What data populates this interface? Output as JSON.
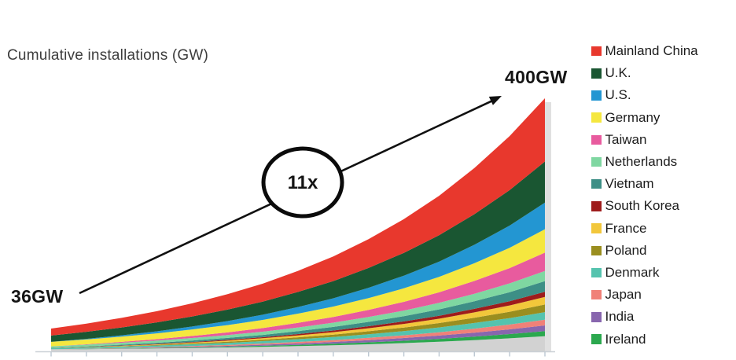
{
  "title": "Cumulative installations (GW)",
  "annotations": {
    "start_label": "36GW",
    "end_label": "400GW",
    "multiplier_label": "11x"
  },
  "legend": {
    "position": "right",
    "items": [
      {
        "label": "Mainland China",
        "color": "#E8382D"
      },
      {
        "label": "U.K.",
        "color": "#1A5632"
      },
      {
        "label": "U.S.",
        "color": "#2396D2"
      },
      {
        "label": "Germany",
        "color": "#F5E73F"
      },
      {
        "label": "Taiwan",
        "color": "#E85B9E"
      },
      {
        "label": "Netherlands",
        "color": "#7FD7A1"
      },
      {
        "label": "Vietnam",
        "color": "#3D8F86"
      },
      {
        "label": "South Korea",
        "color": "#9E1C1C"
      },
      {
        "label": "France",
        "color": "#F2C73B"
      },
      {
        "label": "Poland",
        "color": "#9A8E1F"
      },
      {
        "label": "Denmark",
        "color": "#55C3AE"
      },
      {
        "label": "Japan",
        "color": "#F08178"
      },
      {
        "label": "India",
        "color": "#8866AE"
      },
      {
        "label": "Ireland",
        "color": "#2BA84E"
      }
    ]
  },
  "chart_data": {
    "type": "area",
    "stacked": true,
    "title": "Cumulative installations (GW)",
    "ylabel": "Cumulative installations (GW)",
    "ylim": [
      0,
      400
    ],
    "start_total_gw": 36,
    "end_total_gw": 400,
    "growth_multiplier": "11x",
    "x_tick_labels_visible": false,
    "num_x_points": 15,
    "legend_position": "right",
    "series_order": "top-to-bottom in stack",
    "series": [
      {
        "name": "Mainland China",
        "color": "#E8382D",
        "in_legend": true,
        "values": [
          11,
          12.9,
          15.1,
          17.7,
          20.7,
          24.3,
          28.4,
          33.3,
          38.9,
          45.5,
          53.3,
          62.4,
          73,
          85.4,
          100
        ]
      },
      {
        "name": "U.K.",
        "color": "#1A5632",
        "in_legend": true,
        "values": [
          10,
          11.2,
          12.5,
          14.1,
          16,
          18.2,
          20.7,
          23.8,
          27.2,
          31.3,
          36.1,
          41.7,
          48.3,
          56,
          65
        ]
      },
      {
        "name": "U.S.",
        "color": "#2396D2",
        "in_legend": true,
        "values": [
          0,
          0.9,
          1.9,
          3.2,
          4.6,
          6.3,
          8.2,
          10.5,
          13.1,
          16.3,
          20,
          24.2,
          29.3,
          35.1,
          42
        ]
      },
      {
        "name": "Germany",
        "color": "#F5E73F",
        "in_legend": true,
        "values": [
          7,
          7.6,
          8.4,
          9.3,
          10.3,
          11.5,
          12.9,
          14.5,
          16.4,
          18.6,
          21.3,
          24.3,
          27.9,
          32.1,
          37
        ]
      },
      {
        "name": "Taiwan",
        "color": "#E85B9E",
        "in_legend": true,
        "values": [
          0,
          0.6,
          1.3,
          2.2,
          3.2,
          4.3,
          5.7,
          7.3,
          9.1,
          11.3,
          13.8,
          16.7,
          20.2,
          24.2,
          29
        ]
      },
      {
        "name": "Netherlands",
        "color": "#7FD7A1",
        "in_legend": true,
        "values": [
          2.5,
          2.8,
          3.1,
          3.5,
          4,
          4.5,
          5.1,
          5.9,
          6.7,
          7.7,
          8.9,
          10.3,
          11.9,
          13.8,
          16
        ]
      },
      {
        "name": "Vietnam",
        "color": "#3D8F86",
        "in_legend": true,
        "values": [
          0.5,
          0.8,
          1.3,
          1.7,
          2.3,
          3,
          3.7,
          4.6,
          5.7,
          6.9,
          8.3,
          10,
          12,
          14.3,
          17
        ]
      },
      {
        "name": "South Korea",
        "color": "#9E1C1C",
        "in_legend": true,
        "values": [
          0.1,
          0.3,
          0.5,
          0.7,
          1,
          1.3,
          1.6,
          2.1,
          2.6,
          3.2,
          3.9,
          4.7,
          5.6,
          6.7,
          8
        ]
      },
      {
        "name": "France",
        "color": "#F2C73B",
        "in_legend": true,
        "values": [
          0,
          0.3,
          0.6,
          0.9,
          1.3,
          1.8,
          2.3,
          3,
          3.8,
          4.7,
          5.7,
          6.9,
          8.4,
          10,
          12
        ]
      },
      {
        "name": "Poland",
        "color": "#9A8E1F",
        "in_legend": true,
        "values": [
          0,
          0.3,
          0.6,
          0.9,
          1.3,
          1.8,
          2.3,
          3,
          3.8,
          4.7,
          5.7,
          6.9,
          8.4,
          10,
          12
        ]
      },
      {
        "name": "Denmark",
        "color": "#55C3AE",
        "in_legend": true,
        "values": [
          1.7,
          1.9,
          2.2,
          2.5,
          2.8,
          3.2,
          3.7,
          4.3,
          4.9,
          5.7,
          6.6,
          7.6,
          8.9,
          10.3,
          12
        ]
      },
      {
        "name": "Japan",
        "color": "#F08178",
        "in_legend": true,
        "values": [
          0.1,
          0.3,
          0.5,
          0.8,
          1.1,
          1.4,
          1.8,
          2.3,
          2.9,
          3.6,
          4.3,
          5.2,
          6.3,
          7.5,
          9
        ]
      },
      {
        "name": "India",
        "color": "#8866AE",
        "in_legend": true,
        "values": [
          0,
          0.2,
          0.4,
          0.7,
          1,
          1.3,
          1.8,
          2.3,
          2.8,
          3.5,
          4.3,
          5.2,
          6.3,
          7.5,
          9
        ]
      },
      {
        "name": "Ireland",
        "color": "#2BA84E",
        "in_legend": true,
        "values": [
          0,
          0.2,
          0.4,
          0.6,
          0.9,
          1.2,
          1.6,
          2,
          2.5,
          3.1,
          3.8,
          4.6,
          5.6,
          6.7,
          8
        ]
      },
      {
        "name": "Other (unlabeled gray band)",
        "color": "#D2D2D2",
        "in_legend": false,
        "values": [
          3.1,
          3.5,
          4.1,
          4.7,
          5.4,
          6.2,
          7.2,
          8.3,
          9.6,
          11.2,
          13,
          15.2,
          17.7,
          20.6,
          24
        ]
      }
    ]
  }
}
